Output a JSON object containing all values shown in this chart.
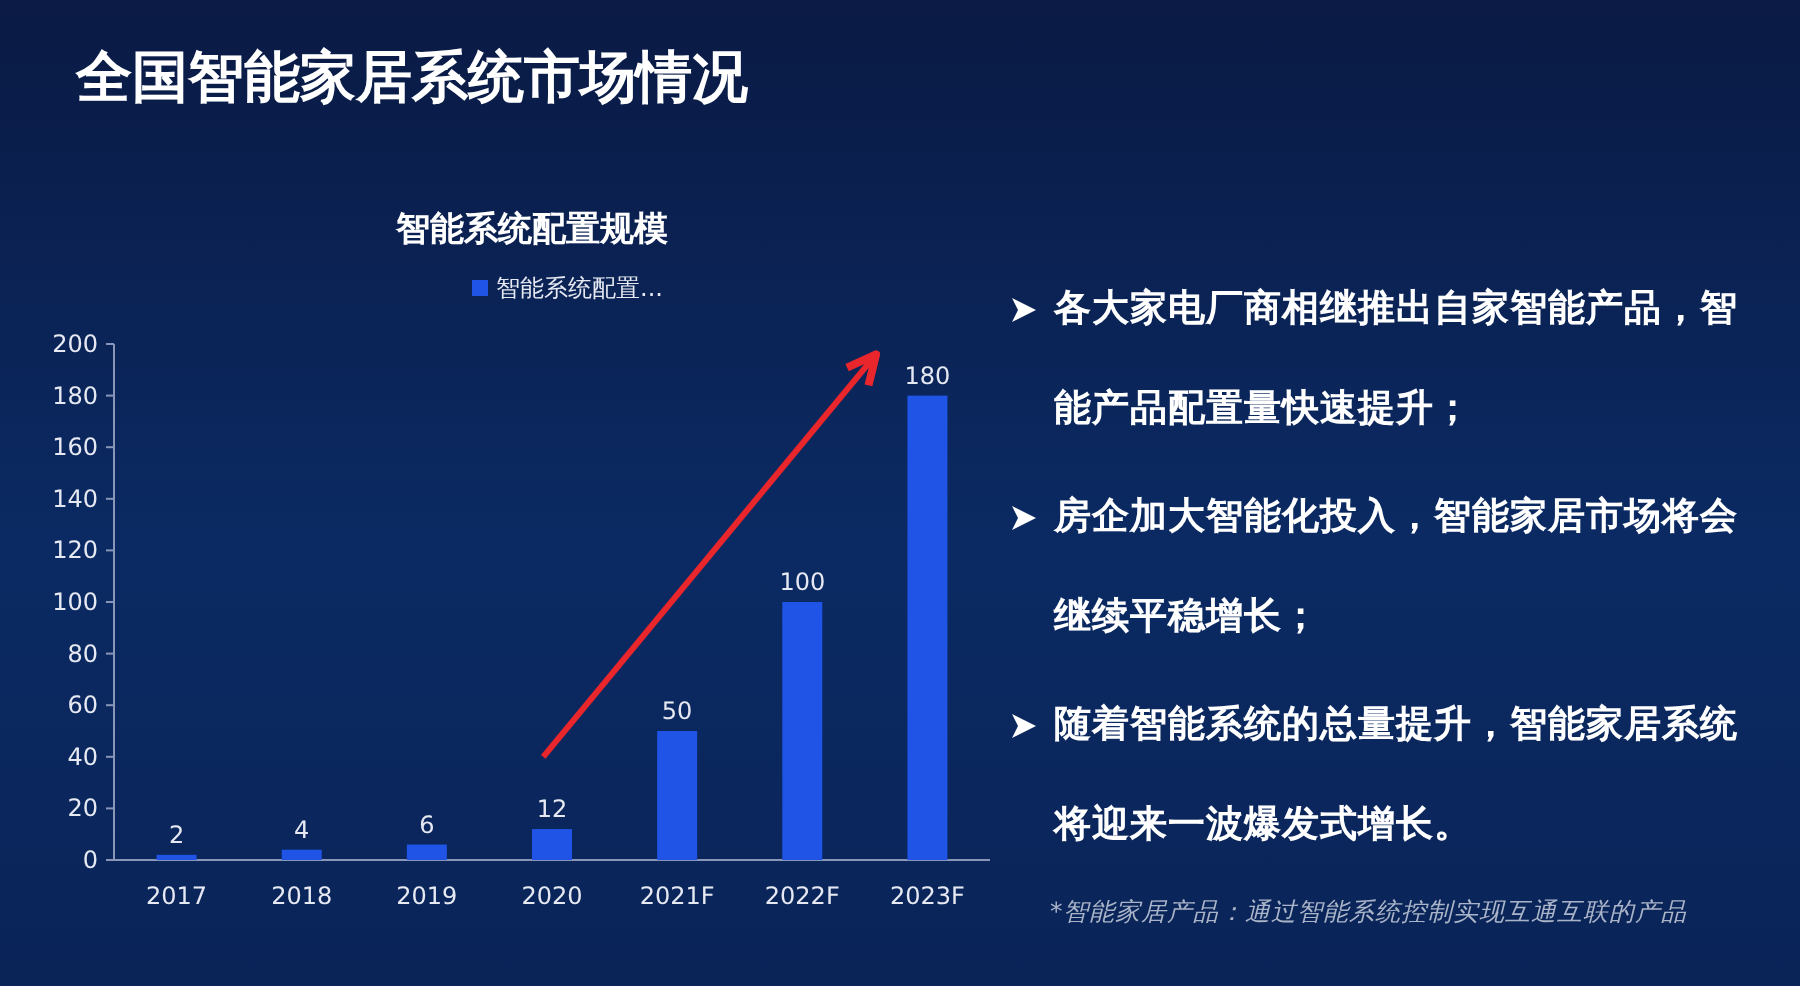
{
  "chart_data": [
    {
      "type": "other",
      "title": "全国智能家居系统市场情况"
    },
    {
      "type": "bar",
      "title": "智能系统配置规模",
      "categories": [
        "2017",
        "2018",
        "2019",
        "2020",
        "2021F",
        "2022F",
        "2023F"
      ],
      "series": [
        {
          "name": "智能系统配置...",
          "color": "#1f54e6",
          "values": [
            2,
            4,
            6,
            12,
            50,
            100,
            180
          ]
        }
      ],
      "ylim": [
        0,
        200
      ],
      "yticks": [
        0,
        20,
        40,
        60,
        80,
        100,
        120,
        140,
        160,
        180,
        200
      ],
      "data_labels": true,
      "legend": "top",
      "grid": false
    },
    {
      "type": "other",
      "annotations": [
        "各大家电厂商相继推出自家智能产品，智能产品配置量快速提升；",
        "房企加大智能化投入，智能家居市场将会继续平稳增长；",
        "随着智能系统的总量提升，智能家居系统将迎来一波爆发式增长。",
        "*智能家居产品：通过智能系统控制实现互通互联的产品"
      ]
    }
  ]
}
